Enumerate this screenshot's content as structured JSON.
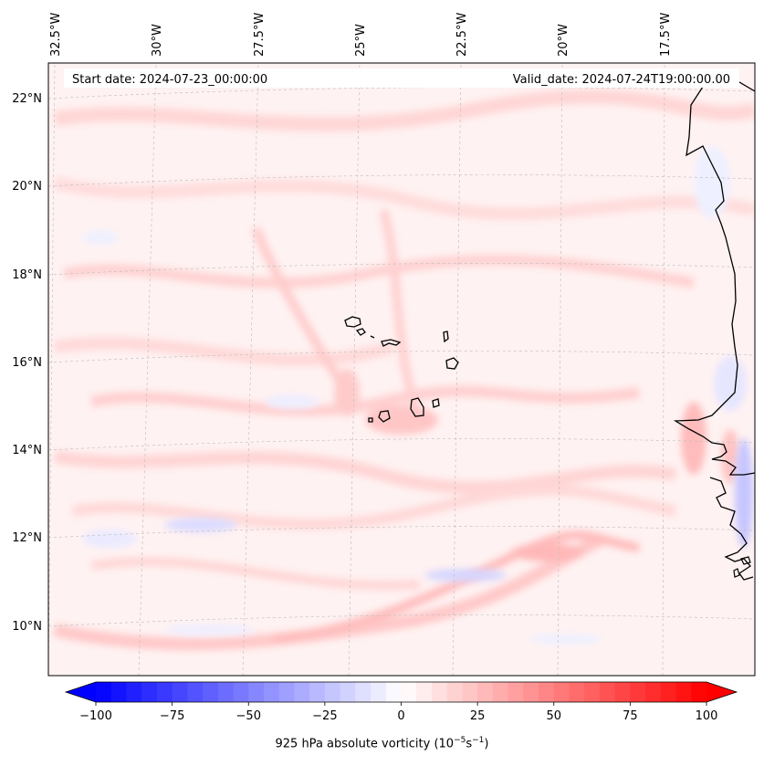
{
  "chart_data": {
    "type": "map-contourf",
    "variable": "925 hPa absolute vorticity",
    "header": {
      "start_date": "Start date: 2024-07-23_00:00:00",
      "valid_date": "Valid_date: 2024-07-24T19:00:00.00"
    },
    "longitude_ticks": [
      "32.5°W",
      "30°W",
      "27.5°W",
      "25°W",
      "22.5°W",
      "20°W",
      "17.5°W"
    ],
    "latitude_ticks": [
      "22°N",
      "20°N",
      "18°N",
      "16°N",
      "14°N",
      "12°N",
      "10°N"
    ],
    "lon_range": [
      -32.5,
      -15
    ],
    "lat_range": [
      9,
      22.8
    ],
    "colorbar": {
      "cmap": "bwr",
      "vmin": -100,
      "vmax": 100,
      "ticks": [
        "−100",
        "−75",
        "−50",
        "−25",
        "0",
        "25",
        "50",
        "75",
        "100"
      ],
      "tick_values": [
        -100,
        -75,
        -50,
        -25,
        0,
        25,
        50,
        75,
        100
      ],
      "extend": "both",
      "label_main": "925 hPa absolute vorticity (10",
      "label_exp1": "−5",
      "label_mid": "s",
      "label_exp2": "−1",
      "label_end": ")"
    },
    "colors": {
      "negative": "#0000ff",
      "neutral": "#ffffff",
      "positive": "#ff0000",
      "coastline": "#000000"
    },
    "features": [
      "Cape Verde Islands",
      "West African coastline"
    ]
  }
}
